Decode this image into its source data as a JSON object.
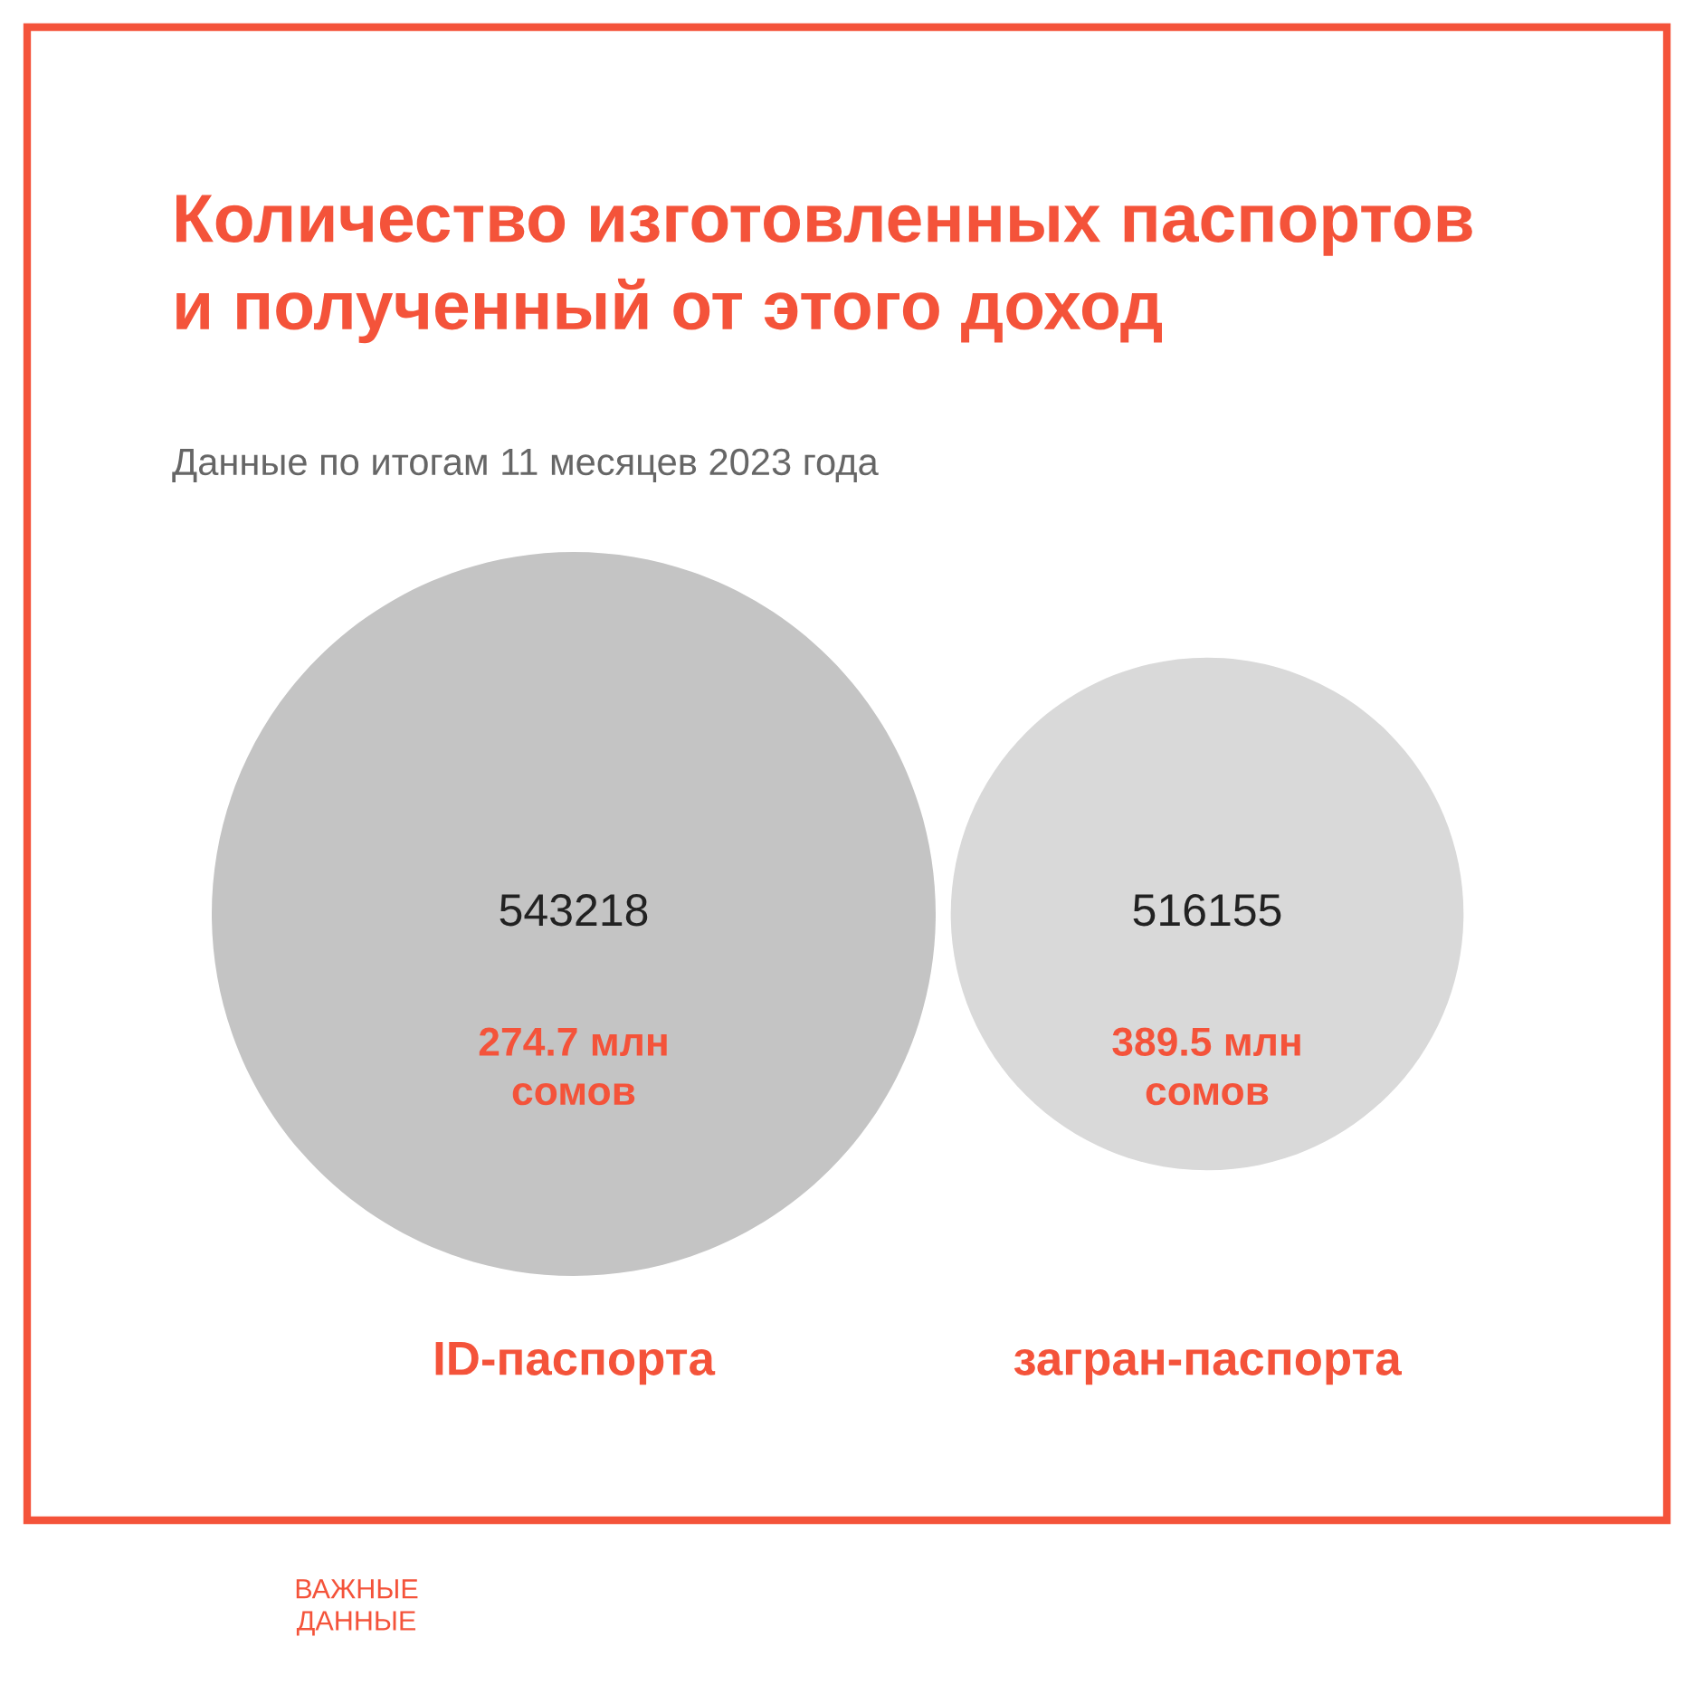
{
  "chart_data": {
    "type": "other",
    "title": "Количество изготовленных паспортов\nи полученный от этого доход",
    "subtitle": "Данные по итогам 11 месяцев 2023 года",
    "categories": [
      "ID-паспорта",
      "загран-паспорта"
    ],
    "values": [
      543218,
      516155
    ],
    "colors": [
      "#c4c4c4",
      "#d9d9d9"
    ],
    "data_labels": true,
    "annotations": [
      "274.7 млн\nсомов",
      "389.5 млн\nсомов",
      "ВАЖНЫЕ\nДАННЫЕ"
    ]
  }
}
